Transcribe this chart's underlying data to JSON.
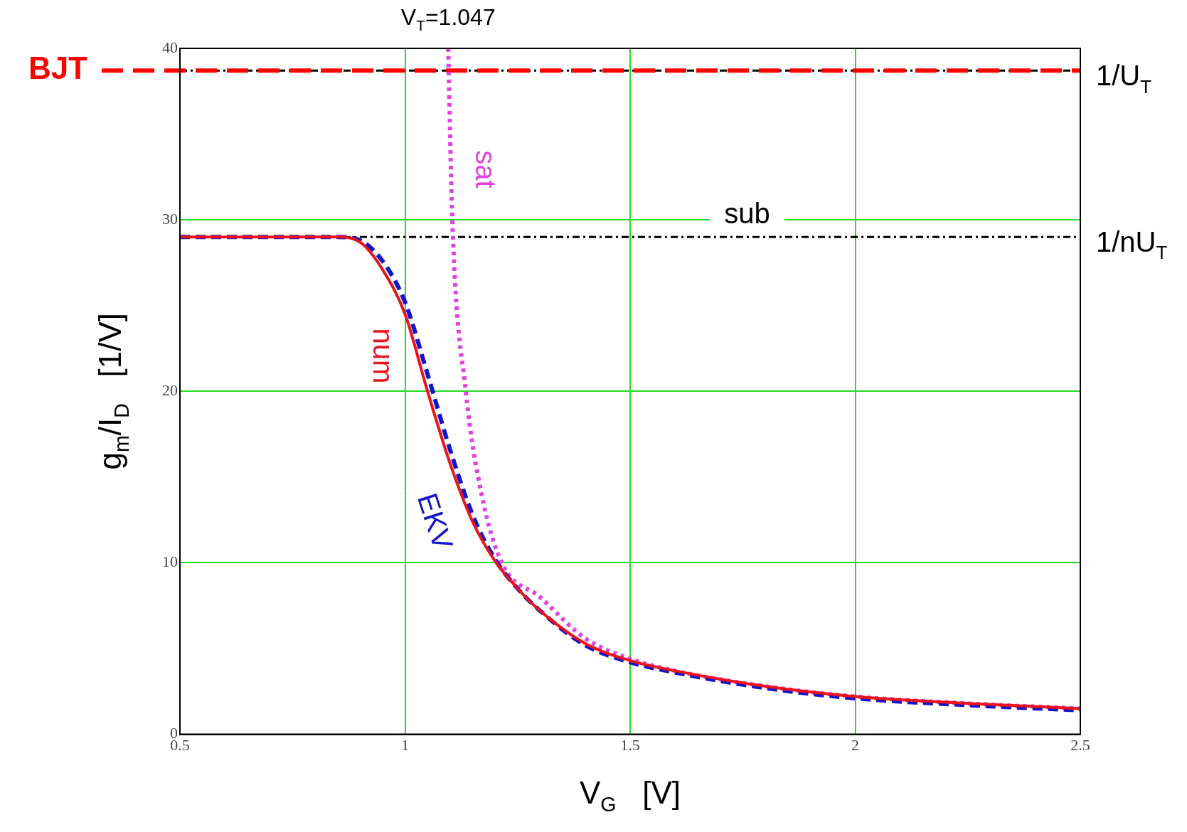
{
  "chart_data": {
    "type": "line",
    "xlabel": "V$_{G}$   [V]",
    "ylabel": "g$_{m}$/I$_{D}$   [1/V]",
    "xlim": [
      0.5,
      2.5
    ],
    "xticks": [
      0.5,
      1,
      1.5,
      2,
      2.5
    ],
    "ylim": [
      0,
      40
    ],
    "yticks": [
      0,
      10,
      20,
      30,
      40
    ],
    "grid": true,
    "legend": false,
    "marker": "none",
    "series": [
      {
        "name": "num",
        "color": "#e8141a",
        "line_style": "solid",
        "x": [
          0.5,
          0.85,
          0.9,
          0.95,
          1.0,
          1.05,
          1.1,
          1.15,
          1.2,
          1.25,
          1.3,
          1.4,
          1.5,
          1.6,
          1.8,
          2.0,
          2.25,
          2.5
        ],
        "values": [
          29,
          29,
          28.7,
          27.1,
          24.5,
          20,
          15.8,
          12.4,
          10.1,
          8.5,
          7.2,
          5.3,
          4.3,
          3.7,
          2.8,
          2.2,
          1.8,
          1.5
        ]
      },
      {
        "name": "EKV",
        "color": "#1414c8",
        "line_style": "dashed",
        "x": [
          0.5,
          0.85,
          0.9,
          0.95,
          1.0,
          1.05,
          1.1,
          1.15,
          1.2,
          1.25,
          1.3,
          1.4,
          1.5,
          1.6,
          1.8,
          2.0,
          2.25,
          2.5
        ],
        "values": [
          29,
          29,
          28.8,
          27.6,
          25.2,
          21,
          16.6,
          12.8,
          10.2,
          8.5,
          7.2,
          5.2,
          4.2,
          3.6,
          2.7,
          2.1,
          1.7,
          1.4
        ]
      },
      {
        "name": "sat",
        "color": "#e040e0",
        "line_style": "dotted",
        "x": [
          1.096,
          1.105,
          1.135,
          1.17,
          1.215,
          1.3,
          1.4,
          1.5,
          1.6,
          1.8,
          2.0,
          2.25,
          2.5
        ],
        "values": [
          40,
          30,
          20,
          14,
          10,
          8.0,
          5.6,
          4.4,
          3.7,
          2.8,
          2.2,
          1.8,
          1.5
        ]
      }
    ],
    "ref_lines": [
      {
        "axis": "y",
        "value": 38.7,
        "label": "1/U$_{T}$",
        "color": "#000000",
        "line_style": "dotted"
      },
      {
        "axis": "y",
        "value": 38.7,
        "label": "BJT",
        "color": "#ff0000",
        "line_style": "dashed"
      },
      {
        "axis": "y",
        "value": 29,
        "label": "1/nU$_{T}$",
        "color": "#000000",
        "line_style": "dotted"
      }
    ],
    "annotations": [
      {
        "text": "V$_{T}$=1.047",
        "x": 1.096,
        "y": 40
      },
      "sub"
    ]
  }
}
